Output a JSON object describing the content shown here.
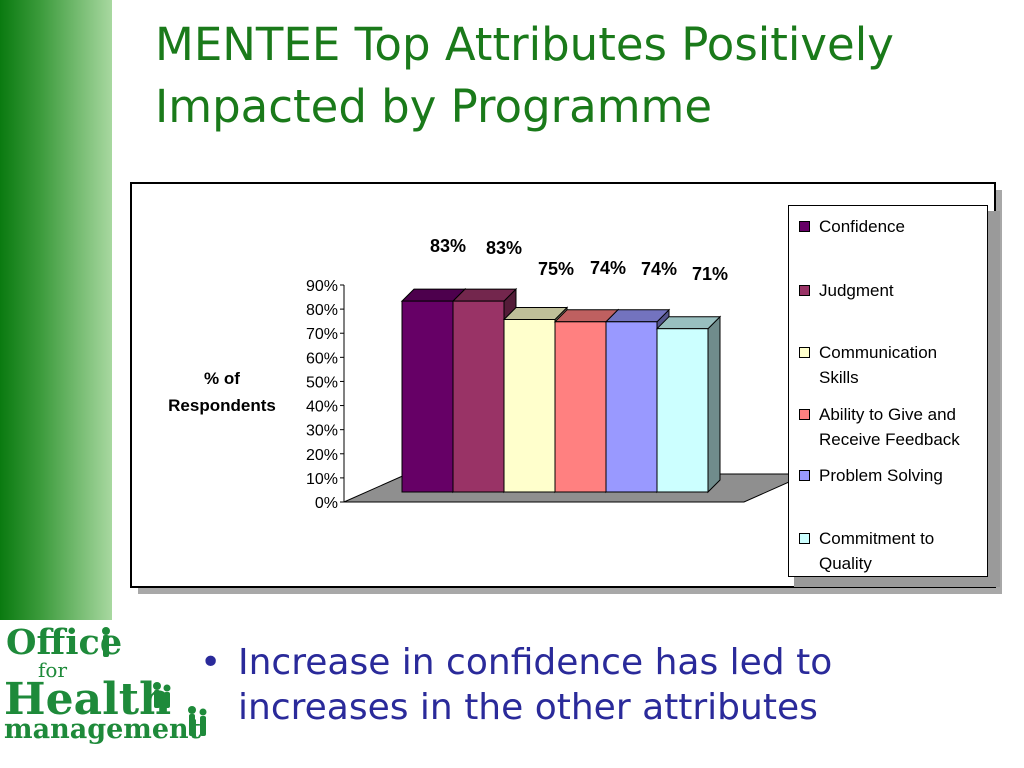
{
  "slide": {
    "title": "MENTEE Top Attributes Positively Impacted by Programme",
    "bullet": "Increase in confidence has led to increases in the other attributes",
    "bullet_marker": "•"
  },
  "logo": {
    "office": "Office",
    "for": "for",
    "health": "Health",
    "management": "management"
  },
  "colors": {
    "title": "#1a7a1a",
    "bullet": "#2a2a9a",
    "sidebar": "#0a7a10",
    "logo": "#1e8a3a"
  },
  "chart_data": {
    "type": "bar",
    "bar_3d": true,
    "ylabel_lines": [
      "% of",
      "Respondents"
    ],
    "xlabel": "",
    "ylim": [
      0,
      90
    ],
    "yticks": [
      0,
      10,
      20,
      30,
      40,
      50,
      60,
      70,
      80,
      90
    ],
    "ytick_labels": [
      "0%",
      "10%",
      "20%",
      "30%",
      "40%",
      "50%",
      "60%",
      "70%",
      "80%",
      "90%"
    ],
    "grid": false,
    "legend_position": "right",
    "series": [
      {
        "name": "Confidence",
        "value": 83,
        "label": "83%",
        "color": "#660066"
      },
      {
        "name": "Judgment",
        "value": 83,
        "label": "83%",
        "color": "#993366"
      },
      {
        "name": "Communication Skills",
        "value": 75,
        "label": "75%",
        "color": "#ffffcc"
      },
      {
        "name": "Ability to Give and Receive Feedback",
        "value": 74,
        "label": "74%",
        "color": "#ff8080"
      },
      {
        "name": "Problem Solving",
        "value": 74,
        "label": "74%",
        "color": "#9999ff"
      },
      {
        "name": "Commitment to Quality",
        "value": 71,
        "label": "71%",
        "color": "#ccffff"
      }
    ],
    "legend_lines": [
      [
        "Confidence"
      ],
      [
        "Judgment"
      ],
      [
        "Communication",
        "Skills"
      ],
      [
        "Ability to Give and",
        "Receive Feedback"
      ],
      [
        "Problem Solving"
      ],
      [
        "Commitment to",
        "Quality"
      ]
    ]
  }
}
